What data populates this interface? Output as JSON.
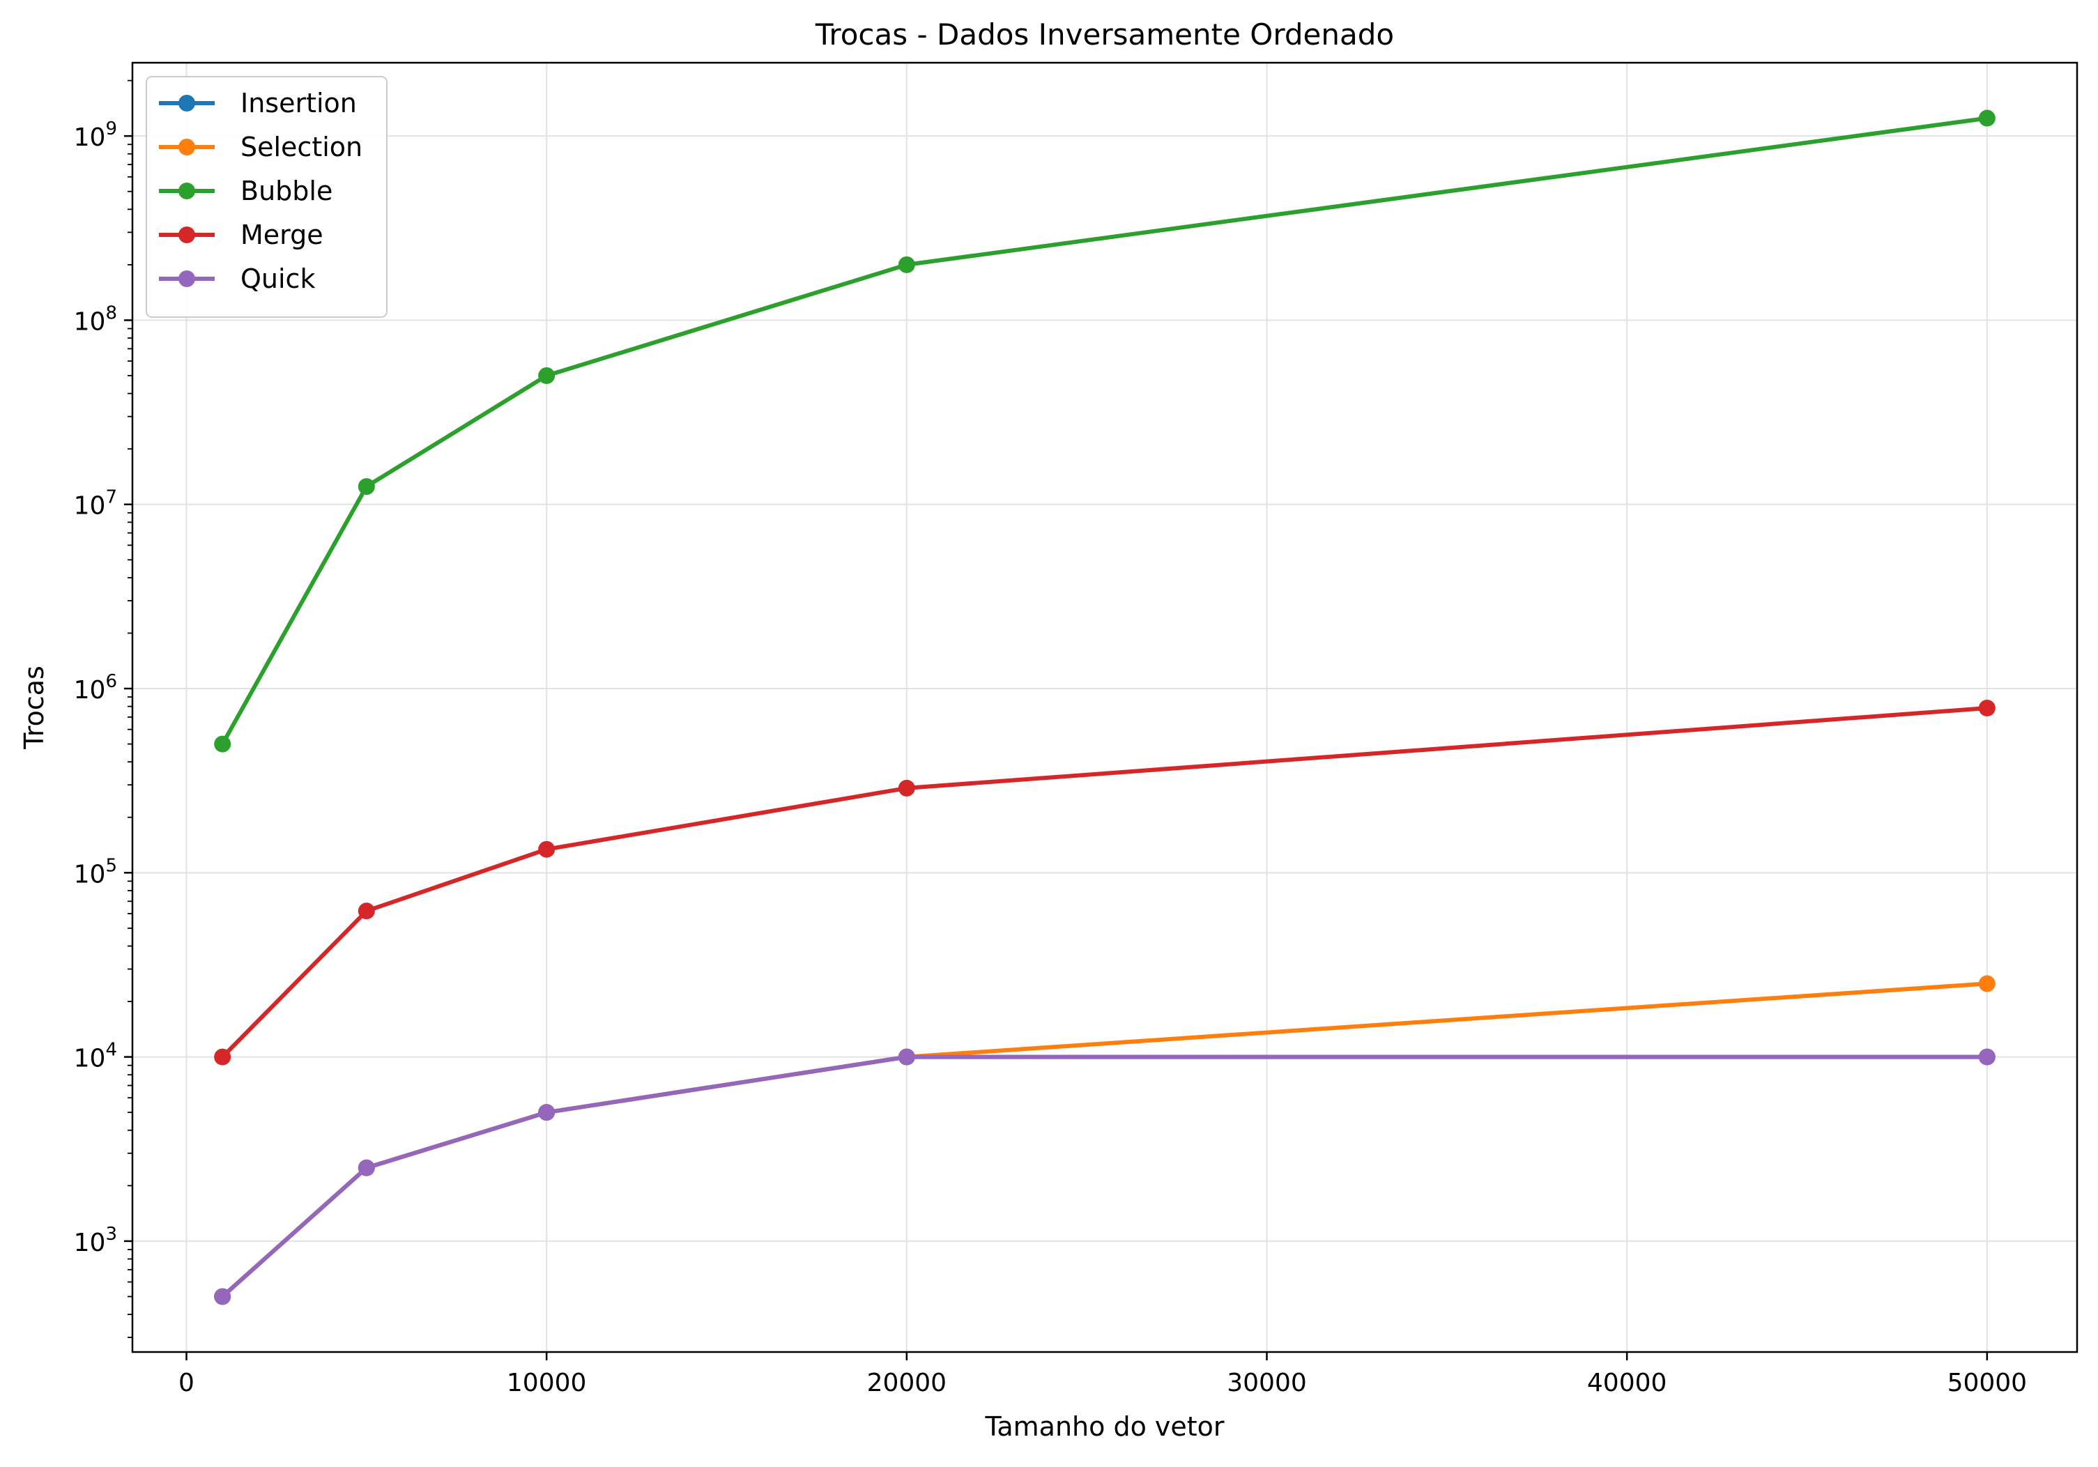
{
  "chart_data": {
    "type": "line",
    "title": "Trocas - Dados Inversamente Ordenado",
    "xlabel": "Tamanho do vetor",
    "ylabel": "Trocas",
    "x": [
      1000,
      5000,
      10000,
      20000,
      50000
    ],
    "xlim": [
      -1500,
      52500
    ],
    "xticks": [
      0,
      10000,
      20000,
      30000,
      40000,
      50000
    ],
    "xtick_labels": [
      "0",
      "10000",
      "20000",
      "30000",
      "40000",
      "50000"
    ],
    "yscale": "log",
    "ylim": [
      250,
      2500000000
    ],
    "yticks": [
      1000,
      10000,
      100000,
      1000000,
      10000000,
      100000000,
      1000000000
    ],
    "ytick_labels": [
      {
        "base": "10",
        "exp": "3"
      },
      {
        "base": "10",
        "exp": "4"
      },
      {
        "base": "10",
        "exp": "5"
      },
      {
        "base": "10",
        "exp": "6"
      },
      {
        "base": "10",
        "exp": "7"
      },
      {
        "base": "10",
        "exp": "8"
      },
      {
        "base": "10",
        "exp": "9"
      }
    ],
    "grid": true,
    "legend_position": "top-left",
    "series": [
      {
        "name": "Insertion",
        "color": "#1f77b4",
        "values": [
          500,
          2500,
          5000,
          10000,
          10000
        ]
      },
      {
        "name": "Selection",
        "color": "#ff7f0e",
        "values": [
          500,
          2500,
          5000,
          10000,
          25000
        ]
      },
      {
        "name": "Bubble",
        "color": "#2ca02c",
        "values": [
          500000,
          12500000,
          50000000,
          200000000,
          1250000000
        ]
      },
      {
        "name": "Merge",
        "color": "#d62728",
        "values": [
          10000,
          62000,
          134000,
          288000,
          784000
        ]
      },
      {
        "name": "Quick",
        "color": "#9467bd",
        "values": [
          500,
          2500,
          5000,
          10000,
          10000
        ]
      }
    ]
  }
}
